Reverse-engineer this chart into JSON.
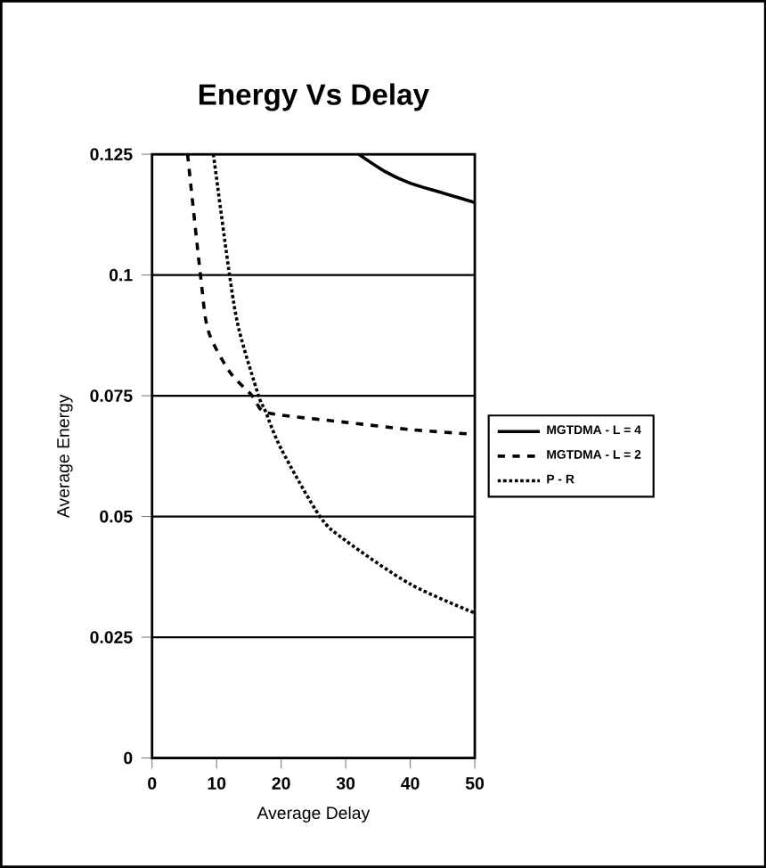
{
  "chart_data": {
    "type": "line",
    "title": "Energy Vs Delay",
    "xlabel": "Average Delay",
    "ylabel": "Average Energy",
    "xlim": [
      0,
      50
    ],
    "ylim": [
      0,
      0.125
    ],
    "xticks": [
      0,
      10,
      20,
      30,
      40,
      50
    ],
    "yticks": [
      0,
      0.025,
      0.05,
      0.075,
      0.1,
      0.125
    ],
    "grid": "y",
    "legend": "right",
    "marker": "none",
    "series": [
      {
        "name": "MGTDMA - L = 4",
        "color": "#000000",
        "line_style": "solid",
        "x": [
          32,
          36,
          40,
          45,
          50
        ],
        "values": [
          0.125,
          0.1215,
          0.119,
          0.117,
          0.115
        ]
      },
      {
        "name": "MGTDMA - L = 2",
        "color": "#000000",
        "line_style": "dashed",
        "x": [
          5.5,
          7.5,
          8.7,
          12,
          15.5,
          17,
          20,
          30,
          40,
          50
        ],
        "values": [
          0.125,
          0.1,
          0.0885,
          0.08,
          0.075,
          0.072,
          0.071,
          0.0695,
          0.068,
          0.067
        ]
      },
      {
        "name": "P - R",
        "color": "#000000",
        "line_style": "dotted",
        "x": [
          9.5,
          12,
          13.5,
          16.5,
          17.5,
          20,
          26,
          30,
          40,
          50
        ],
        "values": [
          0.125,
          0.1,
          0.0885,
          0.075,
          0.072,
          0.064,
          0.05,
          0.045,
          0.036,
          0.03
        ]
      }
    ]
  }
}
